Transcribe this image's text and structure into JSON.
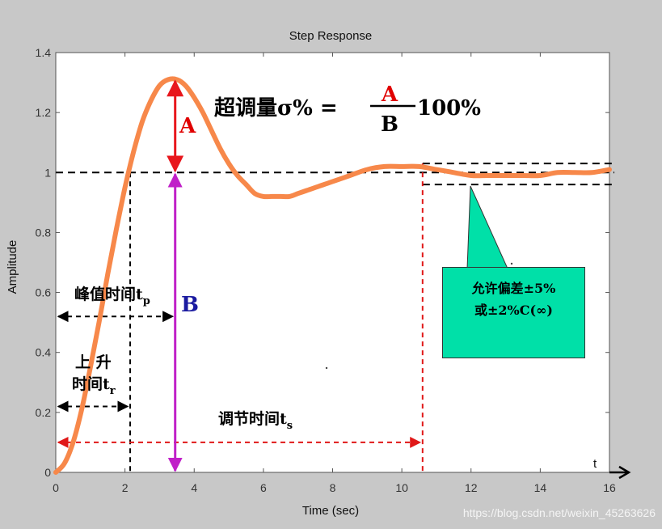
{
  "chart_data": {
    "type": "line",
    "title": "Step Response",
    "xlabel": "Time (sec)",
    "ylabel": "Amplitude",
    "x_axis_letter": "t",
    "xlim": [
      0,
      16
    ],
    "ylim": [
      0,
      1.4
    ],
    "x_ticks": [
      "0",
      "2",
      "4",
      "6",
      "8",
      "10",
      "12",
      "14",
      "16"
    ],
    "y_ticks": [
      "0",
      "0.2",
      "0.4",
      "0.6",
      "0.8",
      "1",
      "1.2",
      "1.4"
    ],
    "series": [
      {
        "name": "step response",
        "x": [
          0,
          0.25,
          0.5,
          0.75,
          1.0,
          1.25,
          1.5,
          1.75,
          2.0,
          2.25,
          2.5,
          2.75,
          3.0,
          3.25,
          3.5,
          3.75,
          4.0,
          4.25,
          4.5,
          4.75,
          5.0,
          5.25,
          5.5,
          5.75,
          6.0,
          6.25,
          6.5,
          6.75,
          7.0,
          7.25,
          7.5,
          7.75,
          8.0,
          8.5,
          9.0,
          9.5,
          10.0,
          10.5,
          11.0,
          11.5,
          12.0,
          12.5,
          13.0,
          13.5,
          14.0,
          14.5,
          15.0,
          15.5,
          16.0
        ],
        "y": [
          0,
          0.03,
          0.1,
          0.21,
          0.35,
          0.5,
          0.66,
          0.81,
          0.95,
          1.07,
          1.17,
          1.24,
          1.29,
          1.31,
          1.31,
          1.29,
          1.25,
          1.2,
          1.14,
          1.08,
          1.03,
          0.99,
          0.96,
          0.93,
          0.92,
          0.92,
          0.92,
          0.92,
          0.93,
          0.94,
          0.95,
          0.96,
          0.97,
          0.99,
          1.01,
          1.02,
          1.02,
          1.02,
          1.01,
          1.0,
          0.99,
          0.99,
          0.99,
          0.99,
          0.99,
          1.0,
          1.0,
          1.0,
          1.01
        ],
        "color": "#f7884a"
      }
    ],
    "reference_lines": {
      "final_value": 1.0,
      "tolerance_upper": 1.03,
      "tolerance_lower": 0.96,
      "rise_time": 2.15,
      "peak_time": 3.45,
      "peak_value": 1.31,
      "settling_time": 10.6
    },
    "annotations": {
      "overshoot_formula_prefix": "超调量σ% =",
      "overshoot_numerator": "A",
      "overshoot_denominator": "B",
      "overshoot_suffix": "100%",
      "label_A": "A",
      "label_B": "B",
      "peak_time_label": "峰值时间t",
      "peak_time_sub": "p",
      "rise_time_label_line1": "上  升",
      "rise_time_label_line2": "时间t",
      "rise_time_sub": "r",
      "settling_time_label": "调节时间t",
      "settling_time_sub": "s",
      "tolerance_line1": "允许偏差±5%",
      "tolerance_line2": "或±2%C(∞)"
    },
    "colors": {
      "curve": "#f7884a",
      "arrow_A": "#e8161c",
      "arrow_B": "#c020c8",
      "label_A": "#e00000",
      "label_B": "#1a1aa0",
      "settling": "#e01818",
      "callout_bg": "#00e0a8"
    }
  },
  "watermark": "https://blog.csdn.net/weixin_45263626"
}
